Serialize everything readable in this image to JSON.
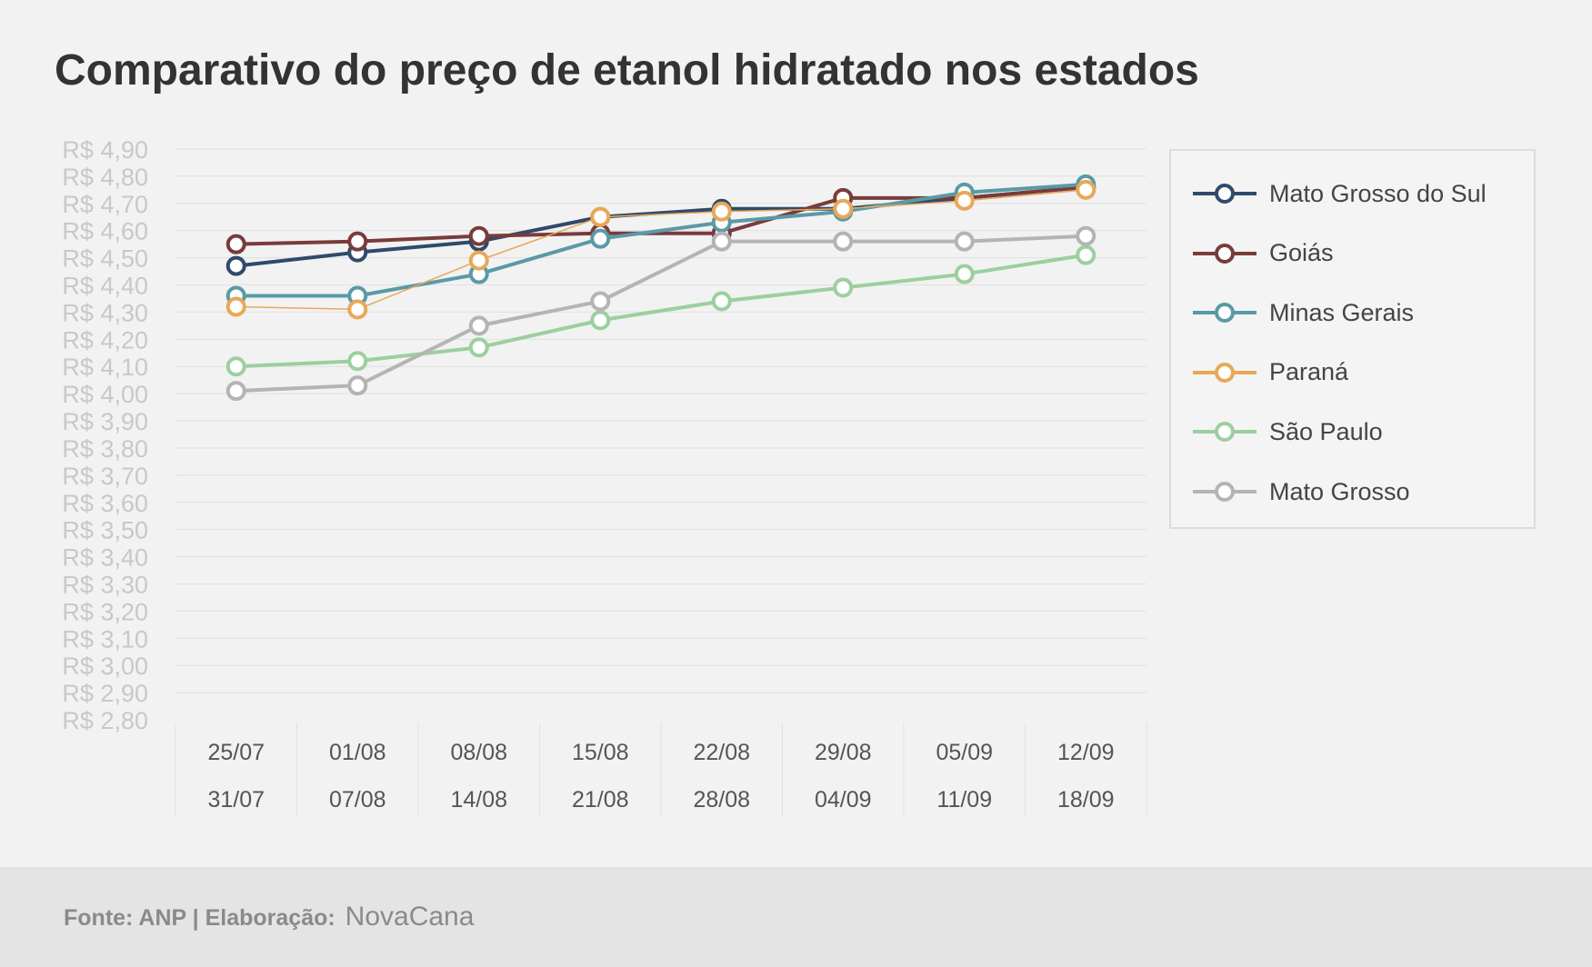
{
  "chart_data": {
    "type": "line",
    "title": "Comparativo do preço de etanol hidratado nos estados",
    "xlabel": "",
    "ylabel": "",
    "categories": [
      [
        "25/07",
        "31/07"
      ],
      [
        "01/08",
        "07/08"
      ],
      [
        "08/08",
        "14/08"
      ],
      [
        "15/08",
        "21/08"
      ],
      [
        "22/08",
        "28/08"
      ],
      [
        "29/08",
        "04/09"
      ],
      [
        "05/09",
        "11/09"
      ],
      [
        "12/09",
        "18/09"
      ]
    ],
    "ylim": [
      2.8,
      4.9
    ],
    "yticks": [
      "R$ 2,80",
      "R$ 2,90",
      "R$ 3,00",
      "R$ 3,10",
      "R$ 3,20",
      "R$ 3,30",
      "R$ 3,40",
      "R$ 3,50",
      "R$ 3,60",
      "R$ 3,70",
      "R$ 3,80",
      "R$ 3,90",
      "R$ 4,00",
      "R$ 4,10",
      "R$ 4,20",
      "R$ 4,30",
      "R$ 4,40",
      "R$ 4,50",
      "R$ 4,60",
      "R$ 4,70",
      "R$ 4,80",
      "R$ 4,90"
    ],
    "grid": true,
    "legend_position": "right",
    "series": [
      {
        "name": "Mato Grosso do Sul",
        "color": "#2f4a6a",
        "values": [
          4.47,
          4.52,
          4.56,
          4.65,
          4.68,
          4.68,
          4.72,
          4.76
        ]
      },
      {
        "name": "Goiás",
        "color": "#7a3b3b",
        "values": [
          4.55,
          4.56,
          4.58,
          4.59,
          4.59,
          4.72,
          4.72,
          4.76
        ]
      },
      {
        "name": "Minas Gerais",
        "color": "#5a9aa6",
        "values": [
          4.36,
          4.36,
          4.44,
          4.57,
          4.63,
          4.67,
          4.74,
          4.77
        ]
      },
      {
        "name": "Paraná",
        "color": "#e8a858",
        "values": [
          4.32,
          4.31,
          4.49,
          4.65,
          4.67,
          4.68,
          4.71,
          4.75
        ]
      },
      {
        "name": "São Paulo",
        "color": "#9ccf9e",
        "values": [
          4.1,
          4.12,
          4.17,
          4.27,
          4.34,
          4.39,
          4.44,
          4.51
        ]
      },
      {
        "name": "Mato Grosso",
        "color": "#b4b4b4",
        "values": [
          4.01,
          4.03,
          4.25,
          4.34,
          4.56,
          4.56,
          4.56,
          4.58
        ]
      }
    ]
  },
  "footer": {
    "source": "Fonte: ANP | Elaboração:",
    "brand": "NovaCana"
  }
}
